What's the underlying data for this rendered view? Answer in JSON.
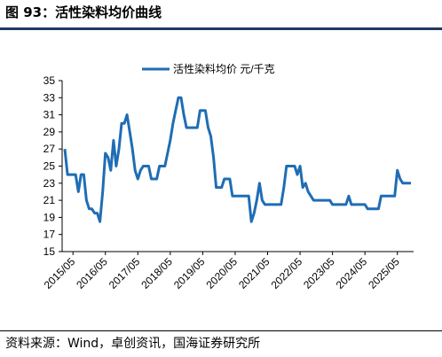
{
  "figure": {
    "title": "图 93：活性染料均价曲线",
    "source": "资料来源：Wind，卓创资讯，国海证券研究所"
  },
  "colors": {
    "series": "#1f6db4",
    "rule": "#1f3864"
  },
  "chart_data": {
    "type": "line",
    "legend": "top-center",
    "grid": false,
    "ylim": [
      15,
      35
    ],
    "yticks": [
      "15",
      "17",
      "19",
      "21",
      "23",
      "25",
      "27",
      "29",
      "31",
      "33",
      "35"
    ],
    "xticks": [
      "2015/05",
      "2016/05",
      "2017/05",
      "2018/05",
      "2019/05",
      "2020/05",
      "2021/05",
      "2022/05",
      "2023/05",
      "2024/05",
      "2025/05"
    ],
    "series": [
      {
        "name": "活性染料均价 元/千克",
        "points": [
          [
            "2015/02",
            27.0
          ],
          [
            "2015/03",
            24.0
          ],
          [
            "2015/04",
            24.0
          ],
          [
            "2015/06",
            24.0
          ],
          [
            "2015/07",
            22.0
          ],
          [
            "2015/08",
            24.0
          ],
          [
            "2015/09",
            24.0
          ],
          [
            "2015/10",
            21.0
          ],
          [
            "2015/11",
            20.0
          ],
          [
            "2015/12",
            20.0
          ],
          [
            "2016/01",
            19.5
          ],
          [
            "2016/02",
            19.5
          ],
          [
            "2016/03",
            18.5
          ],
          [
            "2016/04",
            22.0
          ],
          [
            "2016/05",
            26.5
          ],
          [
            "2016/06",
            26.0
          ],
          [
            "2016/07",
            24.5
          ],
          [
            "2016/08",
            28.0
          ],
          [
            "2016/09",
            25.0
          ],
          [
            "2016/10",
            27.0
          ],
          [
            "2016/11",
            30.0
          ],
          [
            "2016/12",
            30.0
          ],
          [
            "2017/01",
            31.0
          ],
          [
            "2017/02",
            29.0
          ],
          [
            "2017/03",
            27.0
          ],
          [
            "2017/04",
            24.5
          ],
          [
            "2017/05",
            23.5
          ],
          [
            "2017/06",
            24.5
          ],
          [
            "2017/07",
            25.0
          ],
          [
            "2017/09",
            25.0
          ],
          [
            "2017/10",
            23.5
          ],
          [
            "2017/12",
            23.5
          ],
          [
            "2018/01",
            25.0
          ],
          [
            "2018/03",
            25.0
          ],
          [
            "2018/04",
            26.5
          ],
          [
            "2018/05",
            28.0
          ],
          [
            "2018/06",
            30.0
          ],
          [
            "2018/07",
            31.5
          ],
          [
            "2018/08",
            33.0
          ],
          [
            "2018/09",
            33.0
          ],
          [
            "2018/10",
            31.0
          ],
          [
            "2018/11",
            29.5
          ],
          [
            "2018/12",
            29.5
          ],
          [
            "2019/03",
            29.5
          ],
          [
            "2019/04",
            31.5
          ],
          [
            "2019/06",
            31.5
          ],
          [
            "2019/07",
            29.5
          ],
          [
            "2019/08",
            28.5
          ],
          [
            "2019/09",
            26.0
          ],
          [
            "2019/10",
            22.5
          ],
          [
            "2019/12",
            22.5
          ],
          [
            "2020/01",
            23.5
          ],
          [
            "2020/03",
            23.5
          ],
          [
            "2020/04",
            21.5
          ],
          [
            "2020/06",
            21.5
          ],
          [
            "2020/10",
            21.5
          ],
          [
            "2020/11",
            18.5
          ],
          [
            "2020/12",
            19.5
          ],
          [
            "2021/01",
            21.0
          ],
          [
            "2021/02",
            23.0
          ],
          [
            "2021/03",
            21.0
          ],
          [
            "2021/04",
            20.5
          ],
          [
            "2021/10",
            20.5
          ],
          [
            "2021/11",
            22.5
          ],
          [
            "2021/12",
            25.0
          ],
          [
            "2022/03",
            25.0
          ],
          [
            "2022/04",
            24.0
          ],
          [
            "2022/05",
            25.0
          ],
          [
            "2022/06",
            22.5
          ],
          [
            "2022/07",
            23.0
          ],
          [
            "2022/08",
            22.0
          ],
          [
            "2022/10",
            21.0
          ],
          [
            "2023/04",
            21.0
          ],
          [
            "2023/05",
            20.5
          ],
          [
            "2023/10",
            20.5
          ],
          [
            "2023/11",
            21.5
          ],
          [
            "2023/12",
            20.5
          ],
          [
            "2024/05",
            20.5
          ],
          [
            "2024/06",
            20.0
          ],
          [
            "2024/10",
            20.0
          ],
          [
            "2024/11",
            21.5
          ],
          [
            "2025/04",
            21.5
          ],
          [
            "2025/05",
            24.5
          ],
          [
            "2025/06",
            23.5
          ],
          [
            "2025/07",
            23.0
          ],
          [
            "2025/10",
            23.0
          ]
        ]
      }
    ]
  }
}
